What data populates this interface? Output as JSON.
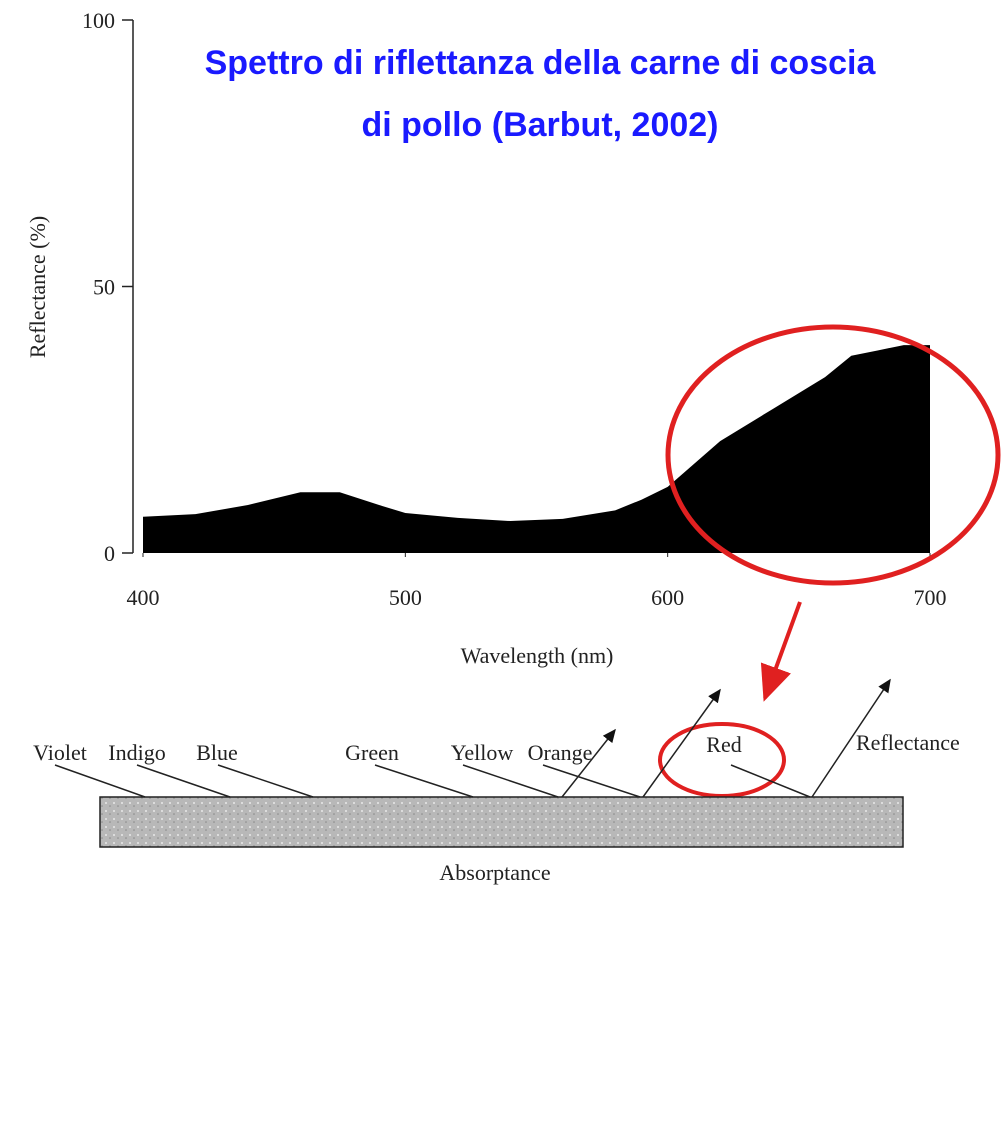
{
  "chart_data": {
    "type": "area",
    "title": "Spettro di riflettanza della carne di coscia di pollo (Barbut, 2002)",
    "xlabel": "Wavelength (nm)",
    "ylabel": "Reflectance (%)",
    "color": "#000000",
    "title_color": "#1a1aff",
    "x": [
      400,
      420,
      440,
      460,
      475,
      490,
      500,
      520,
      540,
      560,
      580,
      590,
      600,
      620,
      640,
      660,
      670,
      680,
      690,
      700
    ],
    "values": [
      6.8,
      7.3,
      9,
      11.4,
      11.4,
      9,
      7.5,
      6.6,
      6,
      6.4,
      8,
      10,
      12.4,
      21,
      27,
      33,
      37,
      38,
      39,
      39
    ],
    "xlim": [
      400,
      700
    ],
    "xticks": [
      400,
      500,
      600,
      700
    ],
    "ylim": [
      0,
      100
    ],
    "yticks": [
      0,
      50,
      100
    ]
  },
  "diagram": {
    "colors": [
      "Violet",
      "Indigo",
      "Blue",
      "Green",
      "Yellow",
      "Orange",
      "Red"
    ],
    "reflectance": "Reflectance",
    "absorptance": "Absorptance"
  }
}
